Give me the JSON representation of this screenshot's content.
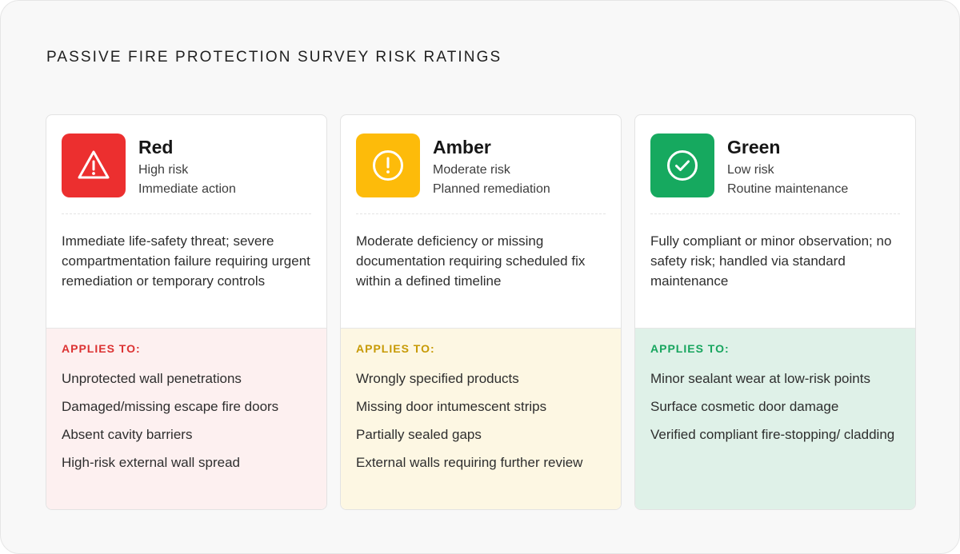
{
  "title": "PASSIVE FIRE PROTECTION SURVEY RISK RATINGS",
  "applies_label": "APPLIES TO:",
  "cards": [
    {
      "name": "Red",
      "subtitle": "High risk",
      "action": "Immediate action",
      "icon": "warning-triangle-icon",
      "color": "#ec2f2f",
      "description": "Immediate life-safety threat; severe compartmentation failure requiring urgent remediation or temporary controls",
      "applies_to": [
        "Unprotected wall penetrations",
        "Damaged/missing escape fire doors",
        "Absent cavity barriers",
        "High-risk external wall spread"
      ]
    },
    {
      "name": "Amber",
      "subtitle": "Moderate risk",
      "action": "Planned remediation",
      "icon": "exclamation-circle-icon",
      "color": "#fdbb0a",
      "description": "Moderate deficiency or missing documentation requiring scheduled fix within a defined timeline",
      "applies_to": [
        "Wrongly specified products",
        "Missing door intumescent strips",
        "Partially sealed gaps",
        "External walls requiring further review"
      ]
    },
    {
      "name": "Green",
      "subtitle": "Low risk",
      "action": "Routine maintenance",
      "icon": "check-circle-icon",
      "color": "#16a95f",
      "description": "Fully compliant or minor observation; no safety risk; handled via standard maintenance",
      "applies_to": [
        "Minor sealant wear at low-risk points",
        "Surface cosmetic door damage",
        "Verified compliant fire-stopping/ cladding"
      ]
    }
  ]
}
